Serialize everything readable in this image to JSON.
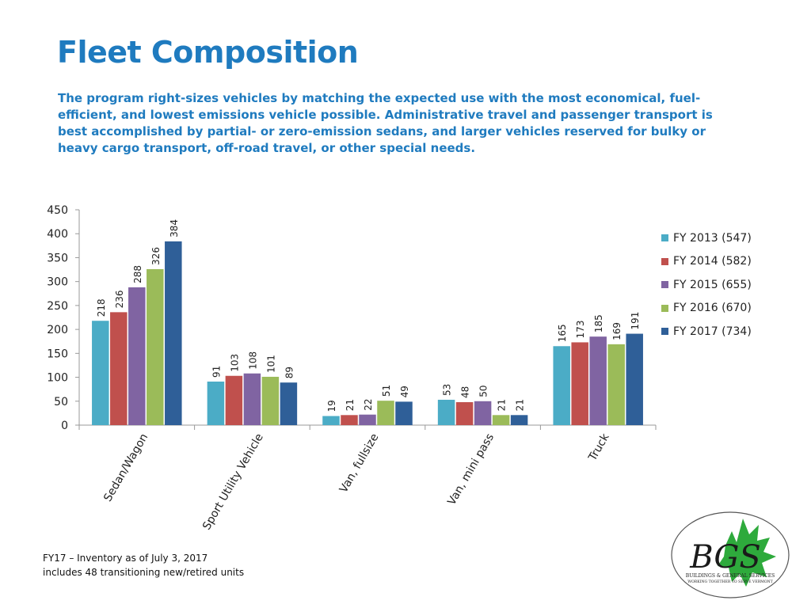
{
  "slide": {
    "title": "Fleet Composition",
    "subtitle": "The program right-sizes vehicles by matching the expected use with the most economical, fuel-efficient, and lowest emissions vehicle possible.  Administrative travel and passenger transport is best accomplished by partial- or zero-emission sedans, and larger vehicles reserved for bulky or heavy cargo transport, off-road travel, or other special needs.",
    "footnote_line1": "FY17 – Inventory as of July 3, 2017",
    "footnote_line2": "includes 48 transitioning new/retired units",
    "logo_text": "BGS",
    "logo_line1": "BUILDINGS & GENERAL SERVICES",
    "logo_line2": "WORKING TOGETHER TO SERVE VERMONT"
  },
  "chart_data": {
    "type": "bar",
    "categories": [
      "Sedan/Wagon",
      "Sport Utility Vehicle",
      "Van, fullsize",
      "Van, mini pass",
      "Truck"
    ],
    "series": [
      {
        "name": "FY 2013 (547)",
        "color": "#4bacc6",
        "values": [
          218,
          91,
          19,
          53,
          165
        ]
      },
      {
        "name": "FY 2014 (582)",
        "color": "#c0504d",
        "values": [
          236,
          103,
          21,
          48,
          173
        ]
      },
      {
        "name": "FY 2015 (655)",
        "color": "#8064a2",
        "values": [
          288,
          108,
          22,
          50,
          185
        ]
      },
      {
        "name": "FY 2016 (670)",
        "color": "#9bbb59",
        "values": [
          326,
          101,
          51,
          21,
          169
        ]
      },
      {
        "name": "FY 2017 (734)",
        "color": "#2f5f98",
        "values": [
          384,
          89,
          49,
          21,
          191
        ]
      }
    ],
    "ylim": [
      0,
      450
    ],
    "yticks": [
      0,
      50,
      100,
      150,
      200,
      250,
      300,
      350,
      400,
      450
    ],
    "xlabel": "",
    "ylabel": "",
    "grid": false,
    "legend_position": "right",
    "data_labels": "rotated-above-bars"
  },
  "colors": {
    "title": "#1f7bbf",
    "logo_leaf": "#2eaa3c"
  }
}
